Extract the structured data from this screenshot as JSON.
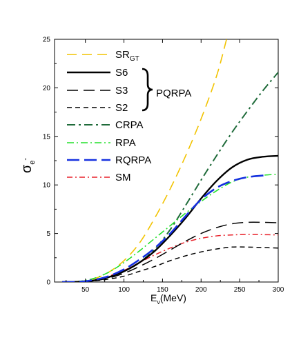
{
  "chart_data": {
    "type": "line",
    "xlabel": {
      "main": "E",
      "sub": "ν",
      "rest": "(MeV)"
    },
    "ylabel": {
      "main": "σ",
      "sub": "e",
      "sup": "-"
    },
    "xlim": [
      10,
      300
    ],
    "ylim": [
      0,
      25
    ],
    "xticks": [
      50,
      100,
      150,
      200,
      250,
      300
    ],
    "yticks": [
      0,
      5,
      10,
      15,
      20,
      25
    ],
    "grid": false,
    "legend_placement": "top-left",
    "group_label": "PQRPA",
    "group_members": [
      "S6",
      "S3",
      "S2"
    ],
    "series": [
      {
        "key": "srgt",
        "name": "SR",
        "name_sub": "GT",
        "color": "#f2c300",
        "dash": "14,8",
        "width": 1.6,
        "x": [
          20,
          40,
          60,
          80,
          100,
          120,
          140,
          160,
          180,
          200,
          220,
          233
        ],
        "y": [
          0,
          0.05,
          0.3,
          1.0,
          2.2,
          4.0,
          6.6,
          9.6,
          13.0,
          16.8,
          21.2,
          25.0
        ]
      },
      {
        "key": "s6",
        "name": "S6",
        "color": "#000000",
        "dash": "",
        "width": 2.4,
        "x": [
          20,
          40,
          60,
          80,
          100,
          120,
          140,
          160,
          180,
          200,
          220,
          240,
          260,
          280,
          300
        ],
        "y": [
          0,
          0.02,
          0.15,
          0.5,
          1.1,
          2.0,
          3.2,
          4.8,
          6.6,
          8.6,
          10.4,
          11.8,
          12.6,
          12.9,
          13.0
        ]
      },
      {
        "key": "s3",
        "name": "S3",
        "color": "#000000",
        "dash": "16,8",
        "width": 1.5,
        "x": [
          20,
          40,
          60,
          80,
          100,
          120,
          140,
          160,
          180,
          200,
          220,
          240,
          260,
          280,
          300
        ],
        "y": [
          0,
          0.02,
          0.12,
          0.4,
          0.9,
          1.6,
          2.4,
          3.3,
          4.2,
          5.0,
          5.6,
          6.0,
          6.15,
          6.15,
          6.1
        ]
      },
      {
        "key": "s2",
        "name": "S2",
        "color": "#000000",
        "dash": "7,5",
        "width": 1.5,
        "x": [
          20,
          40,
          60,
          80,
          100,
          120,
          140,
          160,
          180,
          200,
          220,
          240,
          260,
          280,
          300
        ],
        "y": [
          0,
          0.02,
          0.1,
          0.3,
          0.6,
          1.1,
          1.6,
          2.2,
          2.7,
          3.1,
          3.4,
          3.6,
          3.6,
          3.55,
          3.5
        ]
      },
      {
        "key": "crpa",
        "name": "CRPA",
        "color": "#1f6b3a",
        "dash": "12,5,3,5",
        "width": 2.0,
        "x": [
          20,
          40,
          60,
          80,
          100,
          120,
          140,
          160,
          180,
          200,
          220,
          240,
          260,
          280,
          300
        ],
        "y": [
          0,
          0.03,
          0.15,
          0.5,
          1.1,
          2.0,
          3.4,
          5.4,
          7.9,
          10.5,
          13.0,
          15.4,
          17.6,
          19.7,
          21.6
        ]
      },
      {
        "key": "rpa",
        "name": "RPA",
        "color": "#22e02a",
        "dash": "10,4,2,4",
        "width": 1.6,
        "x": [
          20,
          40,
          60,
          80,
          100,
          120,
          140,
          160,
          180,
          200,
          220,
          240,
          260,
          280,
          300
        ],
        "y": [
          0,
          0.05,
          0.35,
          1.0,
          2.0,
          3.2,
          4.5,
          5.8,
          7.1,
          8.3,
          9.4,
          10.3,
          10.8,
          11.0,
          11.1
        ]
      },
      {
        "key": "rqrpa",
        "name": "RQRPA",
        "color": "#1530e0",
        "dash": "18,7",
        "width": 2.6,
        "x": [
          20,
          40,
          60,
          80,
          100,
          120,
          140,
          160,
          180,
          200,
          220,
          240,
          260,
          285
        ],
        "y": [
          0,
          0.02,
          0.2,
          0.6,
          1.3,
          2.3,
          3.5,
          5.0,
          6.8,
          8.5,
          9.7,
          10.4,
          10.8,
          11.0
        ]
      },
      {
        "key": "sm",
        "name": "SM",
        "color": "#e8212a",
        "dash": "8,4,2,4",
        "width": 1.5,
        "x": [
          20,
          40,
          60,
          80,
          100,
          120,
          140,
          160,
          180,
          200,
          220,
          240,
          260,
          280,
          300
        ],
        "y": [
          0,
          0.03,
          0.2,
          0.6,
          1.2,
          2.0,
          2.8,
          3.5,
          4.1,
          4.5,
          4.75,
          4.85,
          4.9,
          4.88,
          4.85
        ]
      }
    ]
  }
}
